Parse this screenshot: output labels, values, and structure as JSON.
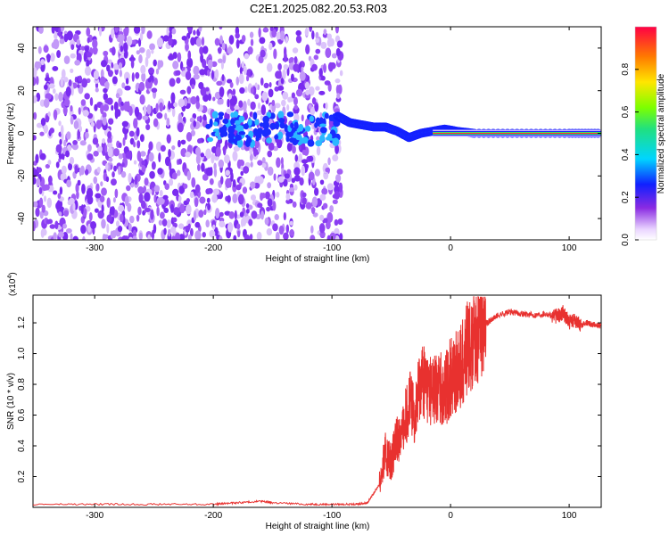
{
  "title": "C2E1.2025.082.20.53.R03",
  "colors": {
    "snr_line": "#e8312f",
    "axis": "#000000",
    "scatter": "#7a2cf0"
  },
  "chart_data": [
    {
      "type": "heatmap",
      "xlabel": "Height of straight line (km)",
      "ylabel": "Frequency (Hz)",
      "xlim": [
        -352,
        127
      ],
      "ylim": [
        -50,
        50
      ],
      "x_ticks": [
        -300,
        -200,
        -100,
        0,
        100
      ],
      "x_tick_labels": [
        "-300",
        "-200",
        "-100",
        "0",
        "100"
      ],
      "y_ticks": [
        -40,
        -20,
        0,
        20,
        40
      ],
      "y_tick_labels": [
        "-40",
        "-20",
        "0",
        "20",
        "40"
      ],
      "colorbar": {
        "label": "Normalized spectral amplitude",
        "range": [
          0,
          1
        ],
        "ticks": [
          0.0,
          0.2,
          0.4,
          0.6,
          0.8
        ],
        "tick_labels": [
          "0.0",
          "0.2",
          "0.4",
          "0.6",
          "0.8"
        ],
        "colormap": "rainbow"
      },
      "signal_track": {
        "x": [
          -95,
          -85,
          -75,
          -65,
          -55,
          -45,
          -35,
          -25,
          -15,
          -5,
          5,
          20,
          60,
          100,
          127
        ],
        "y": [
          8,
          5,
          4,
          3,
          3,
          1,
          -2,
          0,
          1,
          2,
          1,
          0,
          0,
          0,
          0
        ]
      }
    },
    {
      "type": "line",
      "xlabel": "Height of straight line (km)",
      "ylabel": "SNR (10 * v/v)",
      "y_multiplier_label": "(x10",
      "y_multiplier_exp": "4",
      "y_multiplier_close": ")",
      "xlim": [
        -352,
        127
      ],
      "ylim": [
        0,
        1.38
      ],
      "x_ticks": [
        -300,
        -200,
        -100,
        0,
        100
      ],
      "x_tick_labels": [
        "-300",
        "-200",
        "-100",
        "0",
        "100"
      ],
      "y_ticks": [
        0.2,
        0.4,
        0.6,
        0.8,
        1.0,
        1.2
      ],
      "y_tick_labels": [
        "0.2",
        "0.4",
        "0.6",
        "0.8",
        "1.0",
        "1.2"
      ],
      "series": [
        {
          "x": [
            -352,
            -300,
            -250,
            -200,
            -180,
            -160,
            -150,
            -120,
            -100,
            -80,
            -70,
            -60,
            -55,
            -50,
            -45,
            -40,
            -35,
            -30,
            -25,
            -20,
            -15,
            -10,
            -5,
            0,
            5,
            10,
            15,
            20,
            25,
            30,
            35,
            40,
            50,
            60,
            70,
            80,
            90,
            95,
            100,
            105,
            110,
            115,
            120,
            127
          ],
          "y": [
            0.02,
            0.02,
            0.02,
            0.02,
            0.03,
            0.04,
            0.03,
            0.02,
            0.02,
            0.02,
            0.03,
            0.15,
            0.35,
            0.3,
            0.45,
            0.5,
            0.7,
            0.6,
            0.85,
            0.8,
            0.75,
            0.8,
            0.75,
            0.85,
            0.88,
            0.95,
            1.05,
            1.08,
            1.13,
            1.2,
            1.22,
            1.25,
            1.27,
            1.26,
            1.25,
            1.26,
            1.24,
            1.27,
            1.2,
            1.22,
            1.18,
            1.2,
            1.19,
            1.18
          ]
        }
      ]
    }
  ]
}
